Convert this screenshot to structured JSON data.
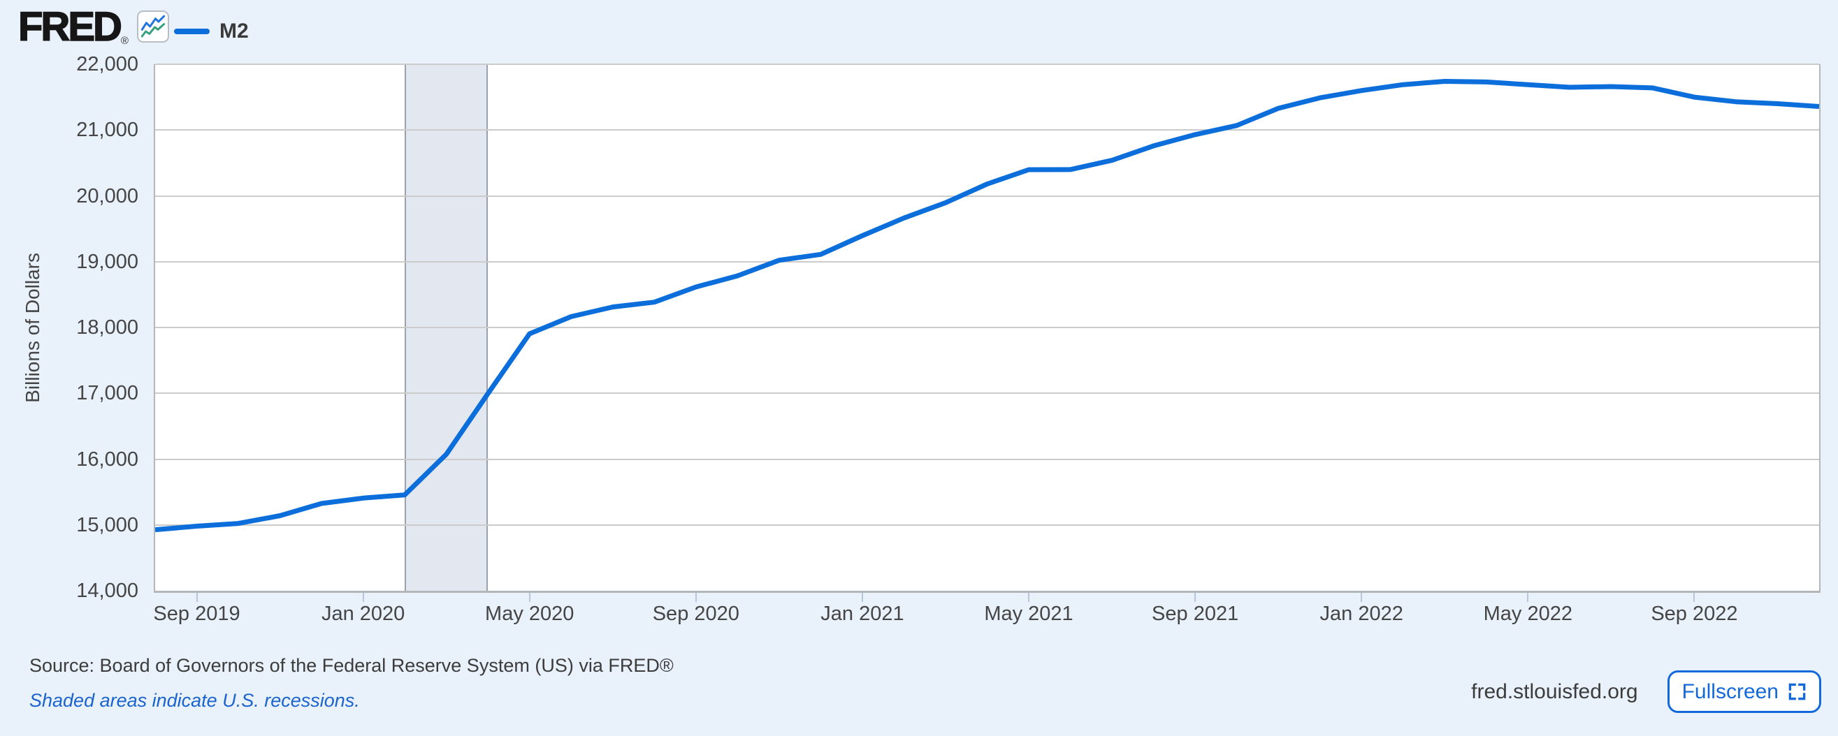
{
  "header": {
    "brand": "FRED",
    "registered_mark": "®",
    "legend": {
      "label": "M2"
    }
  },
  "chart_data": {
    "type": "line",
    "title": "",
    "xlabel": "",
    "ylabel": "Billions of Dollars",
    "ylim": [
      14000,
      22000
    ],
    "yticks": [
      14000,
      15000,
      16000,
      17000,
      18000,
      19000,
      20000,
      21000,
      22000
    ],
    "grid": "horizontal",
    "legend_position": "top-left",
    "x": [
      "Aug 2019",
      "Sep 2019",
      "Oct 2019",
      "Nov 2019",
      "Dec 2019",
      "Jan 2020",
      "Feb 2020",
      "Mar 2020",
      "Apr 2020",
      "May 2020",
      "Jun 2020",
      "Jul 2020",
      "Aug 2020",
      "Sep 2020",
      "Oct 2020",
      "Nov 2020",
      "Dec 2020",
      "Jan 2021",
      "Feb 2021",
      "Mar 2021",
      "Apr 2021",
      "May 2021",
      "Jun 2021",
      "Jul 2021",
      "Aug 2021",
      "Sep 2021",
      "Oct 2021",
      "Nov 2021",
      "Dec 2021",
      "Jan 2022",
      "Feb 2022",
      "Mar 2022",
      "Apr 2022",
      "May 2022",
      "Jun 2022",
      "Jul 2022",
      "Aug 2022",
      "Sep 2022",
      "Oct 2022",
      "Nov 2022",
      "Dec 2022"
    ],
    "series": [
      {
        "name": "M2",
        "color": "#0b6edb",
        "values": [
          14926,
          14981,
          15023,
          15141,
          15326,
          15408,
          15457,
          16074,
          16996,
          17905,
          18165,
          18312,
          18385,
          18615,
          18785,
          19022,
          19111,
          19395,
          19664,
          19896,
          20180,
          20398,
          20400,
          20540,
          20760,
          20930,
          21070,
          21330,
          21490,
          21600,
          21690,
          21740,
          21730,
          21690,
          21650,
          21660,
          21640,
          21500,
          21430,
          21400,
          21358
        ]
      }
    ],
    "xticks": [
      {
        "label": "Sep 2019",
        "index": 1
      },
      {
        "label": "Jan 2020",
        "index": 5
      },
      {
        "label": "May 2020",
        "index": 9
      },
      {
        "label": "Sep 2020",
        "index": 13
      },
      {
        "label": "Jan 2021",
        "index": 17
      },
      {
        "label": "May 2021",
        "index": 21
      },
      {
        "label": "Sep 2021",
        "index": 25
      },
      {
        "label": "Jan 2022",
        "index": 29
      },
      {
        "label": "May 2022",
        "index": 33
      },
      {
        "label": "Sep 2022",
        "index": 37
      }
    ],
    "recession_bands": [
      {
        "start_index": 6,
        "end_index": 8
      }
    ]
  },
  "footer": {
    "source": "Source: Board of Governors of the Federal Reserve System (US) via FRED®",
    "recession_note": "Shaded areas indicate U.S. recessions.",
    "site_url": "fred.stlouisfed.org",
    "fullscreen_label": "Fullscreen"
  },
  "colors": {
    "background": "#e9f1fb",
    "plot_background": "#ffffff",
    "gridline": "#cbcbcb",
    "axis_border": "#b4b7ba",
    "tick": "#b9c6da",
    "axis_text": "#454545",
    "line": "#0b6edb",
    "recession_band": "#e3e7ef",
    "recession_border": "#9aa1ac",
    "link_blue": "#1b63cf",
    "button_blue": "#1469da",
    "logo_blue": "#2173de",
    "logo_green": "#35a17c",
    "text_dark": "#3c3c3c"
  }
}
